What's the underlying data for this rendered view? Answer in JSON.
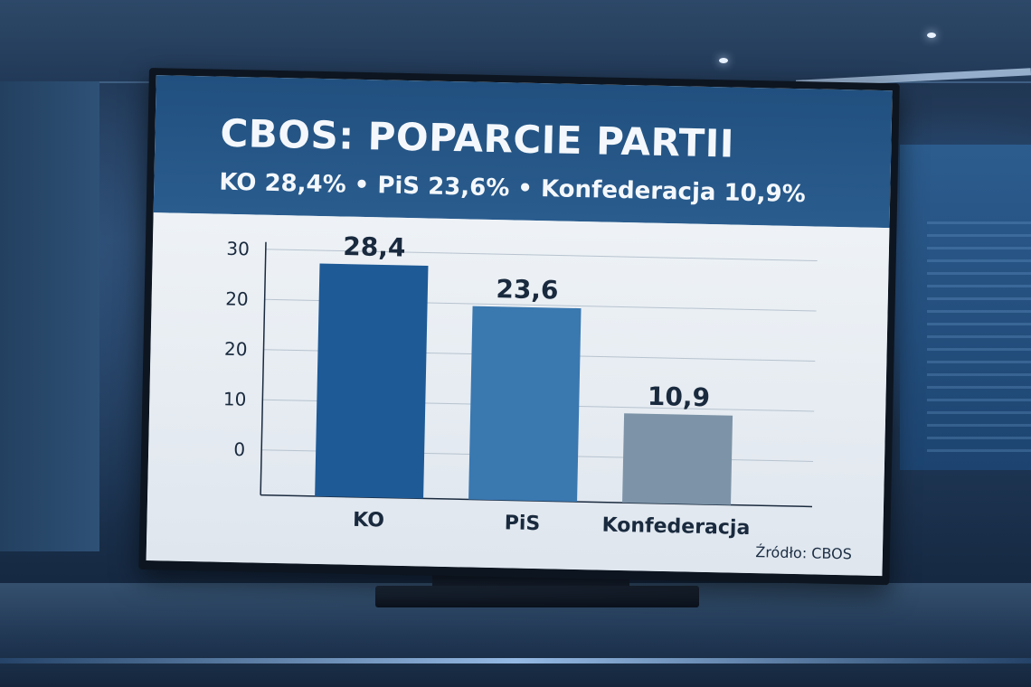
{
  "title": "CBOS: POPARCIE PARTII",
  "subtitle": "KO 28,4% • PiS 23,6% • Konfederacja 10,9%",
  "source": "Źródło: CBOS",
  "chart_data": {
    "type": "bar",
    "categories": [
      "KO",
      "PiS",
      "Konfederacja"
    ],
    "values": [
      28.4,
      23.6,
      10.9
    ],
    "value_labels": [
      "28,4",
      "23,6",
      "10,9"
    ],
    "y_tick_labels": [
      "0",
      "10",
      "20",
      "20",
      "30"
    ],
    "ylim": [
      0,
      30
    ],
    "grid": true,
    "legend": "none",
    "bar_colors": [
      "#1e5a96",
      "#3a78b0",
      "#7d94a8"
    ],
    "label_color": "#1a2a3e",
    "axis_color": "#1a2a3e"
  }
}
